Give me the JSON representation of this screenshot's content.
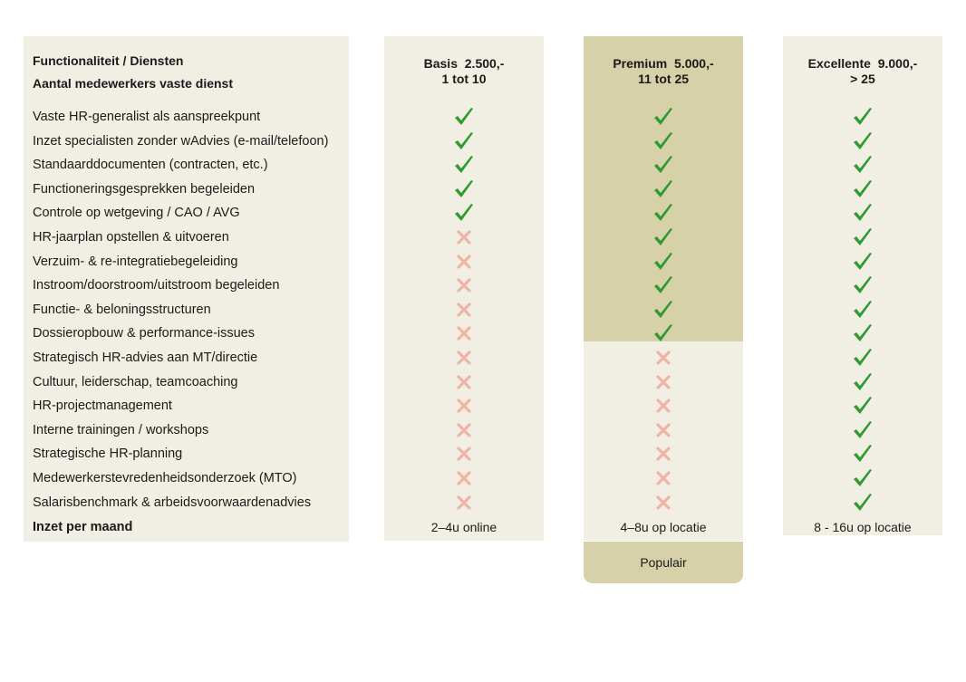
{
  "header": {
    "title": "Functionaliteit / Diensten",
    "subtitle": "Aantal medewerkers vaste dienst"
  },
  "tiers": [
    {
      "name": "Basis",
      "price": "2.500,-",
      "range": "1 tot 10",
      "hours": "2–4u online"
    },
    {
      "name": "Premium",
      "price": "5.000,-",
      "range": "11 tot 25",
      "hours": "4–8u op locatie"
    },
    {
      "name": "Excellente",
      "price": "9.000,-",
      "range": "> 25",
      "hours": "8 - 16u op locatie"
    }
  ],
  "features": [
    {
      "label": "Vaste HR-generalist als aanspreekpunt",
      "included": [
        true,
        true,
        true
      ]
    },
    {
      "label": "Inzet specialisten zonder wAdvies (e-mail/telefoon)",
      "included": [
        true,
        true,
        true
      ]
    },
    {
      "label": "Standaarddocumenten (contracten, etc.)",
      "included": [
        true,
        true,
        true
      ]
    },
    {
      "label": "Functioneringsgesprekken begeleiden",
      "included": [
        true,
        true,
        true
      ]
    },
    {
      "label": "Controle op wetgeving / CAO / AVG",
      "included": [
        true,
        true,
        true
      ]
    },
    {
      "label": "HR-jaarplan opstellen & uitvoeren",
      "included": [
        false,
        true,
        true
      ]
    },
    {
      "label": "Verzuim- & re-integratiebegeleiding",
      "included": [
        false,
        true,
        true
      ]
    },
    {
      "label": "Instroom/doorstroom/uitstroom begeleiden",
      "included": [
        false,
        true,
        true
      ]
    },
    {
      "label": "Functie- & beloningsstructuren",
      "included": [
        false,
        true,
        true
      ]
    },
    {
      "label": "Dossieropbouw & performance-issues",
      "included": [
        false,
        true,
        true
      ]
    },
    {
      "label": "Strategisch HR-advies aan MT/directie",
      "included": [
        false,
        false,
        true
      ]
    },
    {
      "label": "Cultuur, leiderschap, teamcoaching",
      "included": [
        false,
        false,
        true
      ]
    },
    {
      "label": "HR-projectmanagement",
      "included": [
        false,
        false,
        true
      ]
    },
    {
      "label": "Interne trainingen / workshops",
      "included": [
        false,
        false,
        true
      ]
    },
    {
      "label": "Strategische HR-planning",
      "included": [
        false,
        false,
        true
      ]
    },
    {
      "label": "Medewerkerstevredenheidsonderzoek (MTO)",
      "included": [
        false,
        false,
        true
      ]
    },
    {
      "label": "Salarisbenchmark & arbeidsvoorwaardenadvies",
      "included": [
        false,
        false,
        true
      ]
    }
  ],
  "footer_label": "Inzet per maand",
  "badge": "Populair",
  "colors": {
    "check": "#2e9b2e",
    "cross": "#f0b4a4",
    "panel": "#f1efe4",
    "highlight": "#d6d1a8"
  },
  "icons": {
    "included": "check-icon",
    "excluded": "cross-icon"
  }
}
